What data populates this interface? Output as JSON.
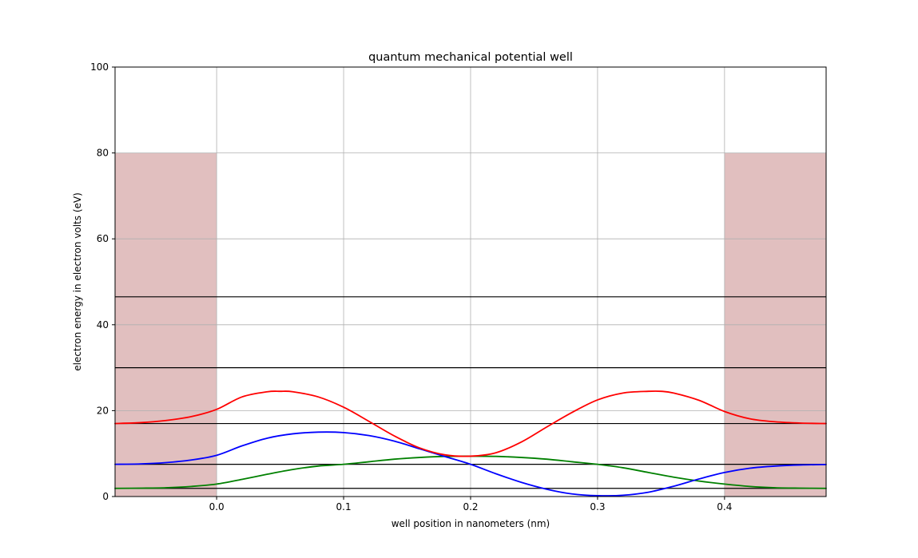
{
  "chart_data": {
    "type": "line",
    "title": "quantum mechanical potential well",
    "xlabel": "well position in nanometers (nm)",
    "ylabel": "electron energy in electron volts (eV)",
    "xlim": [
      -0.08,
      0.48
    ],
    "ylim": [
      0,
      100
    ],
    "x_ticks": [
      0.0,
      0.1,
      0.2,
      0.3,
      0.4
    ],
    "x_tick_labels": [
      "0.0",
      "0.1",
      "0.2",
      "0.3",
      "0.4"
    ],
    "y_ticks": [
      0,
      20,
      40,
      60,
      80,
      100
    ],
    "y_tick_labels": [
      "0",
      "20",
      "40",
      "60",
      "80",
      "100"
    ],
    "grid": true,
    "legend": "none",
    "barriers": [
      {
        "x_start": -0.08,
        "x_end": 0.0,
        "height": 80
      },
      {
        "x_start": 0.4,
        "x_end": 0.48,
        "height": 80
      }
    ],
    "barrier_color": "#e1bfbf",
    "energy_levels": [
      1.9,
      7.5,
      17.0,
      30.0,
      46.5
    ],
    "series": [
      {
        "color": "#008000",
        "x": [
          -0.08,
          -0.06,
          -0.04,
          -0.02,
          0.0,
          0.02,
          0.04,
          0.06,
          0.08,
          0.1,
          0.12,
          0.14,
          0.16,
          0.18,
          0.2,
          0.22,
          0.24,
          0.26,
          0.28,
          0.3,
          0.32,
          0.34,
          0.36,
          0.38,
          0.4,
          0.42,
          0.44,
          0.46,
          0.48
        ],
        "values": [
          1.9,
          1.95,
          2.05,
          2.35,
          2.9,
          4.0,
          5.2,
          6.3,
          7.1,
          7.5,
          8.1,
          8.7,
          9.1,
          9.35,
          9.4,
          9.35,
          9.1,
          8.7,
          8.1,
          7.5,
          6.7,
          5.6,
          4.5,
          3.6,
          2.9,
          2.35,
          2.05,
          1.95,
          1.9
        ]
      },
      {
        "color": "#0000ff",
        "x": [
          -0.08,
          -0.06,
          -0.04,
          -0.02,
          0.0,
          0.02,
          0.04,
          0.06,
          0.08,
          0.1,
          0.12,
          0.14,
          0.16,
          0.18,
          0.2,
          0.22,
          0.24,
          0.26,
          0.28,
          0.3,
          0.32,
          0.34,
          0.36,
          0.38,
          0.4,
          0.42,
          0.44,
          0.46,
          0.48
        ],
        "values": [
          7.5,
          7.6,
          7.9,
          8.5,
          9.6,
          11.8,
          13.6,
          14.6,
          15.0,
          14.9,
          14.2,
          12.9,
          11.1,
          9.3,
          7.5,
          5.3,
          3.3,
          1.7,
          0.6,
          0.2,
          0.3,
          1.0,
          2.4,
          4.1,
          5.6,
          6.6,
          7.1,
          7.35,
          7.45
        ]
      },
      {
        "color": "#ff0000",
        "x": [
          -0.08,
          -0.06,
          -0.04,
          -0.02,
          0.0,
          0.02,
          0.04,
          0.05,
          0.06,
          0.08,
          0.1,
          0.12,
          0.14,
          0.16,
          0.18,
          0.2,
          0.22,
          0.24,
          0.26,
          0.28,
          0.3,
          0.32,
          0.34,
          0.35,
          0.36,
          0.38,
          0.4,
          0.42,
          0.44,
          0.46,
          0.48
        ],
        "values": [
          17.0,
          17.2,
          17.7,
          18.6,
          20.3,
          23.2,
          24.4,
          24.5,
          24.4,
          23.2,
          20.8,
          17.5,
          14.1,
          11.3,
          9.7,
          9.4,
          10.2,
          12.7,
          16.2,
          19.6,
          22.5,
          24.1,
          24.5,
          24.5,
          24.1,
          22.4,
          19.8,
          18.1,
          17.4,
          17.1,
          17.0
        ]
      }
    ]
  }
}
